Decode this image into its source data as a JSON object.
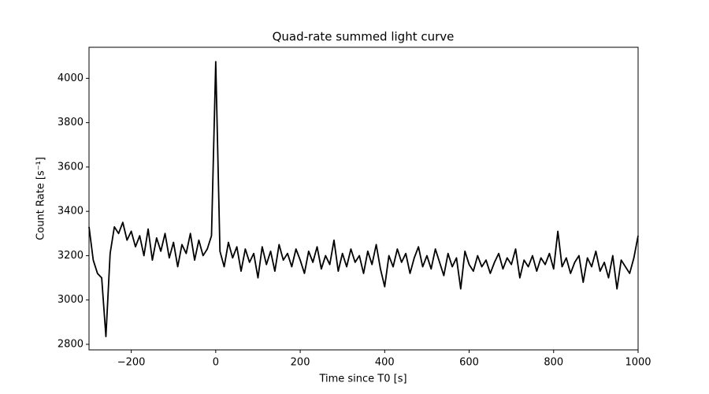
{
  "chart_data": {
    "type": "line",
    "title": "Quad-rate summed light curve",
    "x_label": "Time since T0 [s]",
    "y_label": "Count Rate [s⁻¹]",
    "x": [
      -300,
      -290,
      -280,
      -270,
      -260,
      -250,
      -240,
      -230,
      -220,
      -210,
      -200,
      -190,
      -180,
      -170,
      -160,
      -150,
      -140,
      -130,
      -120,
      -110,
      -100,
      -90,
      -80,
      -70,
      -60,
      -50,
      -40,
      -30,
      -20,
      -10,
      0,
      10,
      20,
      30,
      40,
      50,
      60,
      70,
      80,
      90,
      100,
      110,
      120,
      130,
      140,
      150,
      160,
      170,
      180,
      190,
      200,
      210,
      220,
      230,
      240,
      250,
      260,
      270,
      280,
      290,
      300,
      310,
      320,
      330,
      340,
      350,
      360,
      370,
      380,
      390,
      400,
      410,
      420,
      430,
      440,
      450,
      460,
      470,
      480,
      490,
      500,
      510,
      520,
      530,
      540,
      550,
      560,
      570,
      580,
      590,
      600,
      610,
      620,
      630,
      640,
      650,
      660,
      670,
      680,
      690,
      700,
      710,
      720,
      730,
      740,
      750,
      760,
      770,
      780,
      790,
      800,
      810,
      820,
      830,
      840,
      850,
      860,
      870,
      880,
      890,
      900,
      910,
      920,
      930,
      940,
      950,
      960,
      970,
      980,
      990,
      1000
    ],
    "series": [
      {
        "color": "#000000",
        "values": [
          3330,
          3180,
          3120,
          3100,
          2835,
          3210,
          3330,
          3300,
          3350,
          3270,
          3310,
          3240,
          3290,
          3200,
          3320,
          3180,
          3280,
          3220,
          3300,
          3190,
          3260,
          3150,
          3250,
          3210,
          3300,
          3180,
          3270,
          3200,
          3230,
          3290,
          4075,
          3220,
          3150,
          3260,
          3190,
          3240,
          3130,
          3230,
          3170,
          3210,
          3100,
          3240,
          3160,
          3220,
          3130,
          3250,
          3180,
          3210,
          3150,
          3230,
          3180,
          3120,
          3220,
          3170,
          3240,
          3140,
          3200,
          3160,
          3270,
          3130,
          3210,
          3150,
          3230,
          3170,
          3200,
          3120,
          3220,
          3160,
          3250,
          3140,
          3060,
          3200,
          3150,
          3230,
          3170,
          3210,
          3120,
          3190,
          3240,
          3150,
          3200,
          3140,
          3230,
          3170,
          3110,
          3210,
          3150,
          3190,
          3050,
          3220,
          3160,
          3130,
          3200,
          3150,
          3180,
          3120,
          3170,
          3210,
          3140,
          3190,
          3160,
          3230,
          3100,
          3180,
          3150,
          3200,
          3130,
          3190,
          3160,
          3210,
          3140,
          3310,
          3150,
          3190,
          3120,
          3170,
          3200,
          3080,
          3190,
          3150,
          3220,
          3130,
          3170,
          3100,
          3200,
          3050,
          3180,
          3150,
          3120,
          3190,
          3290
        ]
      }
    ],
    "xlim": [
      -300,
      1000
    ],
    "xticks": [
      {
        "value": -200,
        "label": "−200"
      },
      0,
      200,
      400,
      600,
      800,
      1000
    ],
    "ylim": [
      2775,
      4140
    ],
    "yticks": [
      2800,
      3000,
      3200,
      3400,
      3600,
      3800,
      4000
    ]
  }
}
